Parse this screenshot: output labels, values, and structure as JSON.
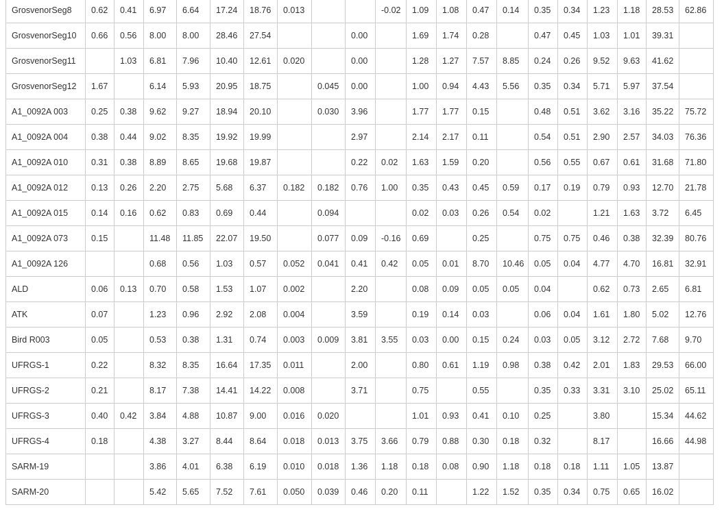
{
  "table": {
    "rows": [
      [
        "GrosvenorSeg8",
        "0.62",
        "0.41",
        "6.97",
        "6.64",
        "17.24",
        "18.76",
        "0.013",
        "",
        "",
        "-0.02",
        "1.09",
        "1.08",
        "0.47",
        "0.14",
        "0.35",
        "0.34",
        "1.23",
        "1.18",
        "28.53",
        "62.86"
      ],
      [
        "GrosvenorSeg10",
        "0.66",
        "0.56",
        "8.00",
        "8.00",
        "28.46",
        "27.54",
        "",
        "",
        "0.00",
        "",
        "1.69",
        "1.74",
        "0.28",
        "",
        "0.47",
        "0.45",
        "1.03",
        "1.01",
        "39.31",
        ""
      ],
      [
        "GrosvenorSeg11",
        "",
        "1.03",
        "6.81",
        "7.96",
        "10.40",
        "12.61",
        "0.020",
        "",
        "0.00",
        "",
        "1.28",
        "1.27",
        "7.57",
        "8.85",
        "0.24",
        "0.26",
        "9.52",
        "9.63",
        "41.62",
        ""
      ],
      [
        "GrosvenorSeg12",
        "1.67",
        "",
        "6.14",
        "5.93",
        "20.95",
        "18.75",
        "",
        "0.045",
        "0.00",
        "",
        "1.00",
        "0.94",
        "4.43",
        "5.56",
        "0.35",
        "0.34",
        "5.71",
        "5.97",
        "37.54",
        ""
      ],
      [
        "A1_0092A 003",
        "0.25",
        "0.38",
        "9.62",
        "9.27",
        "18.94",
        "20.10",
        "",
        "0.030",
        "3.96",
        "",
        "1.77",
        "1.77",
        "0.15",
        "",
        "0.48",
        "0.51",
        "3.62",
        "3.16",
        "35.22",
        "75.72"
      ],
      [
        "A1_0092A 004",
        "0.38",
        "0.44",
        "9.02",
        "8.35",
        "19.92",
        "19.99",
        "",
        "",
        "2.97",
        "",
        "2.14",
        "2.17",
        "0.11",
        "",
        "0.54",
        "0.51",
        "2.90",
        "2.57",
        "34.03",
        "76.36"
      ],
      [
        "A1_0092A 010",
        "0.31",
        "0.38",
        "8.89",
        "8.65",
        "19.68",
        "19.87",
        "",
        "",
        "0.22",
        "0.02",
        "1.63",
        "1.59",
        "0.20",
        "",
        "0.56",
        "0.55",
        "0.67",
        "0.61",
        "31.68",
        "71.80"
      ],
      [
        "A1_0092A 012",
        "0.13",
        "0.26",
        "2.20",
        "2.75",
        "5.68",
        "6.37",
        "0.182",
        "0.182",
        "0.76",
        "1.00",
        "0.35",
        "0.43",
        "0.45",
        "0.59",
        "0.17",
        "0.19",
        "0.79",
        "0.93",
        "12.70",
        "21.78"
      ],
      [
        "A1_0092A 015",
        "0.14",
        "0.16",
        "0.62",
        "0.83",
        "0.69",
        "0.44",
        "",
        "0.094",
        "",
        "",
        "0.02",
        "0.03",
        "0.26",
        "0.54",
        "0.02",
        "",
        "1.21",
        "1.63",
        "3.72",
        "6.45"
      ],
      [
        "A1_0092A 073",
        "0.15",
        "",
        "11.48",
        "11.85",
        "22.07",
        "19.50",
        "",
        "0.077",
        "0.09",
        "-0.16",
        "0.69",
        "",
        "0.25",
        "",
        "0.75",
        "0.75",
        "0.46",
        "0.38",
        "32.39",
        "80.76"
      ],
      [
        "A1_0092A 126",
        "",
        "",
        "0.68",
        "0.56",
        "1.03",
        "0.57",
        "0.052",
        "0.041",
        "0.41",
        "0.42",
        "0.05",
        "0.01",
        "8.70",
        "10.46",
        "0.05",
        "0.04",
        "4.77",
        "4.70",
        "16.81",
        "32.91"
      ],
      [
        "ALD",
        "0.06",
        "0.13",
        "0.70",
        "0.58",
        "1.53",
        "1.07",
        "0.002",
        "",
        "2.20",
        "",
        "0.08",
        "0.09",
        "0.05",
        "0.05",
        "0.04",
        "",
        "0.62",
        "0.73",
        "2.65",
        "6.81"
      ],
      [
        "ATK",
        "0.07",
        "",
        "1.23",
        "0.96",
        "2.92",
        "2.08",
        "0.004",
        "",
        "3.59",
        "",
        "0.19",
        "0.14",
        "0.03",
        "",
        "0.06",
        "0.04",
        "1.61",
        "1.80",
        "5.02",
        "12.76"
      ],
      [
        "Bird R003",
        "0.05",
        "",
        "0.53",
        "0.38",
        "1.31",
        "0.74",
        "0.003",
        "0.009",
        "3.81",
        "3.55",
        "0.03",
        "0.00",
        "0.15",
        "0.24",
        "0.03",
        "0.05",
        "3.12",
        "2.72",
        "7.68",
        "9.70"
      ],
      [
        "UFRGS-1",
        "0.22",
        "",
        "8.32",
        "8.35",
        "16.64",
        "17.35",
        "0.011",
        "",
        "2.00",
        "",
        "0.80",
        "0.61",
        "1.19",
        "0.98",
        "0.38",
        "0.42",
        "2.01",
        "1.83",
        "29.53",
        "66.00"
      ],
      [
        "UFRGS-2",
        "0.21",
        "",
        "8.17",
        "7.38",
        "14.41",
        "14.22",
        "0.008",
        "",
        "3.71",
        "",
        "0.75",
        "",
        "0.55",
        "",
        "0.35",
        "0.33",
        "3.31",
        "3.10",
        "25.02",
        "65.11"
      ],
      [
        "UFRGS-3",
        "0.40",
        "0.42",
        "3.84",
        "4.88",
        "10.87",
        "9.00",
        "0.016",
        "0.020",
        "",
        "",
        "1.01",
        "0.93",
        "0.41",
        "0.10",
        "0.25",
        "",
        "3.80",
        "",
        "15.34",
        "44.62"
      ],
      [
        "UFRGS-4",
        "0.18",
        "",
        "4.38",
        "3.27",
        "8.44",
        "8.64",
        "0.018",
        "0.013",
        "3.75",
        "3.66",
        "0.79",
        "0.88",
        "0.30",
        "0.18",
        "0.32",
        "",
        "8.17",
        "",
        "16.66",
        "44.98"
      ],
      [
        "SARM-19",
        "",
        "",
        "3.86",
        "4.01",
        "6.38",
        "6.19",
        "0.010",
        "0.018",
        "1.36",
        "1.18",
        "0.18",
        "0.08",
        "0.90",
        "1.18",
        "0.18",
        "0.18",
        "1.11",
        "1.05",
        "13.87",
        ""
      ],
      [
        "SARM-20",
        "",
        "",
        "5.42",
        "5.65",
        "7.52",
        "7.61",
        "0.050",
        "0.039",
        "0.46",
        "0.20",
        "0.11",
        "",
        "1.22",
        "1.52",
        "0.35",
        "0.34",
        "0.75",
        "0.65",
        "16.02",
        ""
      ]
    ]
  }
}
